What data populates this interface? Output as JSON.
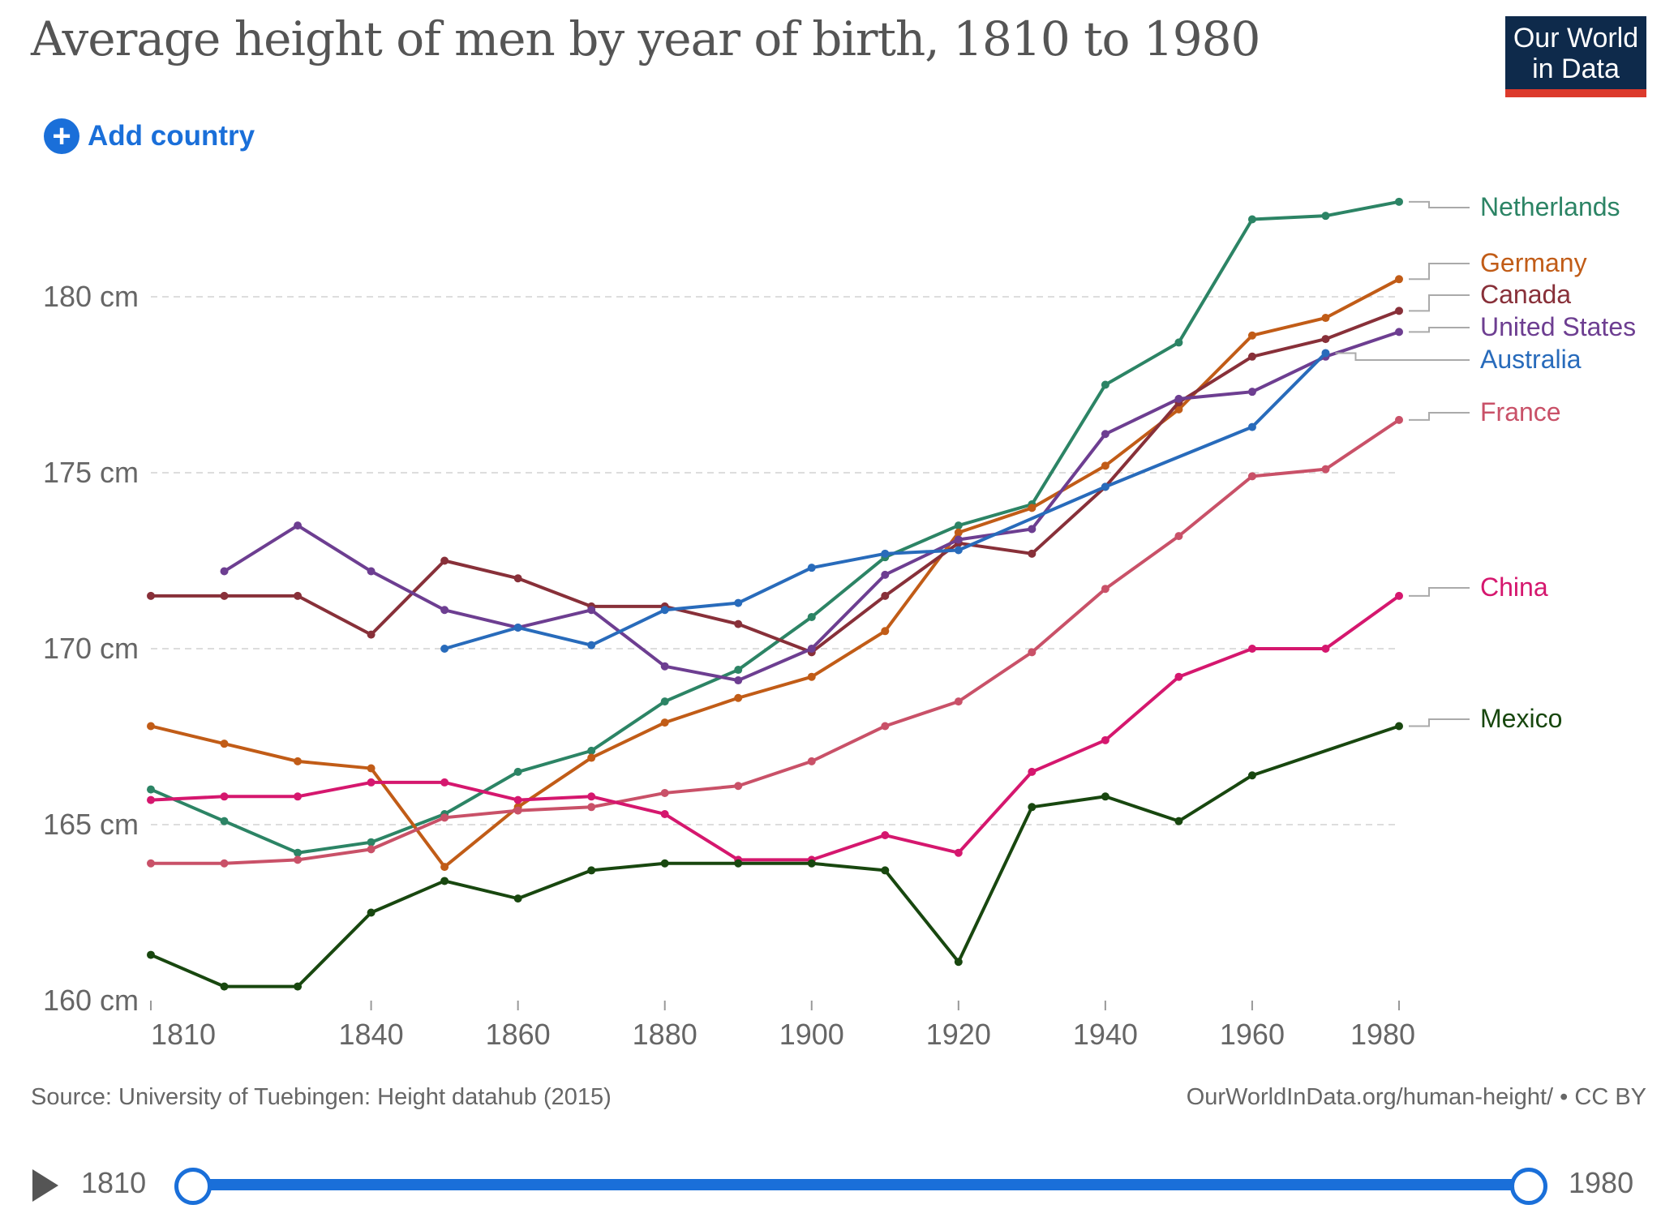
{
  "title": "Average height of men by year of birth, 1810 to 1980",
  "logo": {
    "line1": "Our World",
    "line2": "in Data"
  },
  "add_country": {
    "icon": "plus-circle-icon",
    "label": "Add country"
  },
  "footer": {
    "source": "Source: University of Tuebingen: Height datahub (2015)",
    "credit": "OurWorldInData.org/human-height/ • CC BY"
  },
  "timeline": {
    "start": "1810",
    "end": "1980",
    "play_icon": "play-icon"
  },
  "chart_data": {
    "type": "line",
    "title": "Average height of men by year of birth, 1810 to 1980",
    "xlim": [
      1810,
      1980
    ],
    "ylim": [
      160,
      182.7
    ],
    "x_ticks": [
      1810,
      1840,
      1860,
      1880,
      1900,
      1920,
      1940,
      1960,
      1980
    ],
    "y_ticks": [
      {
        "value": 160,
        "label": "160 cm"
      },
      {
        "value": 165,
        "label": "165 cm"
      },
      {
        "value": 170,
        "label": "170 cm"
      },
      {
        "value": 175,
        "label": "175 cm"
      },
      {
        "value": 180,
        "label": "180 cm"
      }
    ],
    "grid": "horizontal dashed",
    "legend": "right (inline labels)",
    "series": [
      {
        "name": "Netherlands",
        "color": "#2c8465",
        "x": [
          1810,
          1820,
          1830,
          1840,
          1850,
          1860,
          1870,
          1880,
          1890,
          1900,
          1910,
          1920,
          1930,
          1940,
          1950,
          1960,
          1970,
          1980
        ],
        "y": [
          166.0,
          165.1,
          164.2,
          164.5,
          165.3,
          166.5,
          167.1,
          168.5,
          169.4,
          170.9,
          172.6,
          173.5,
          174.1,
          177.5,
          178.7,
          182.2,
          182.3,
          182.7
        ]
      },
      {
        "name": "Germany",
        "color": "#c15c17",
        "x": [
          1810,
          1820,
          1830,
          1840,
          1850,
          1860,
          1870,
          1880,
          1890,
          1900,
          1910,
          1920,
          1930,
          1940,
          1950,
          1960,
          1970,
          1980
        ],
        "y": [
          167.8,
          167.3,
          166.8,
          166.6,
          163.8,
          165.5,
          166.9,
          167.9,
          168.6,
          169.2,
          170.5,
          173.3,
          174.0,
          175.2,
          176.8,
          178.9,
          179.4,
          180.5
        ]
      },
      {
        "name": "Canada",
        "color": "#883039",
        "x": [
          1810,
          1820,
          1830,
          1840,
          1850,
          1860,
          1870,
          1880,
          1890,
          1900,
          1910,
          1920,
          1930,
          1940,
          1950,
          1960,
          1970,
          1980
        ],
        "y": [
          171.5,
          171.5,
          171.5,
          170.4,
          172.5,
          172.0,
          171.2,
          171.2,
          170.7,
          169.9,
          171.5,
          173.0,
          172.7,
          174.6,
          177.0,
          178.3,
          178.8,
          179.6
        ]
      },
      {
        "name": "United States",
        "color": "#6d3e91",
        "x": [
          1820,
          1830,
          1840,
          1850,
          1860,
          1870,
          1880,
          1890,
          1900,
          1910,
          1920,
          1930,
          1940,
          1950,
          1960,
          1970,
          1980
        ],
        "y": [
          172.2,
          173.5,
          172.2,
          171.1,
          170.6,
          171.1,
          169.5,
          169.1,
          170.0,
          172.1,
          173.1,
          173.4,
          176.1,
          177.1,
          177.3,
          178.3,
          179.0
        ]
      },
      {
        "name": "Australia",
        "color": "#286bbb",
        "x": [
          1850,
          1860,
          1870,
          1880,
          1890,
          1900,
          1910,
          1920,
          1940,
          1960,
          1970
        ],
        "y": [
          170.0,
          170.6,
          170.1,
          171.1,
          171.3,
          172.3,
          172.7,
          172.8,
          174.6,
          176.3,
          178.4
        ]
      },
      {
        "name": "France",
        "color": "#c95168",
        "x": [
          1810,
          1820,
          1830,
          1840,
          1850,
          1860,
          1870,
          1880,
          1890,
          1900,
          1910,
          1920,
          1930,
          1940,
          1950,
          1960,
          1970,
          1980
        ],
        "y": [
          163.9,
          163.9,
          164.0,
          164.3,
          165.2,
          165.4,
          165.5,
          165.9,
          166.1,
          166.8,
          167.8,
          168.5,
          169.9,
          171.7,
          173.2,
          174.9,
          175.1,
          176.5
        ]
      },
      {
        "name": "China",
        "color": "#d5176e",
        "x": [
          1810,
          1820,
          1830,
          1840,
          1850,
          1860,
          1870,
          1880,
          1890,
          1900,
          1910,
          1920,
          1930,
          1940,
          1950,
          1960,
          1970,
          1980
        ],
        "y": [
          165.7,
          165.8,
          165.8,
          166.2,
          166.2,
          165.7,
          165.8,
          165.3,
          164.0,
          164.0,
          164.7,
          164.2,
          166.5,
          167.4,
          169.2,
          170.0,
          170.0,
          171.5
        ]
      },
      {
        "name": "Mexico",
        "color": "#18470f",
        "x": [
          1810,
          1820,
          1830,
          1840,
          1850,
          1860,
          1870,
          1880,
          1890,
          1900,
          1910,
          1920,
          1930,
          1940,
          1950,
          1960,
          1980
        ],
        "y": [
          161.3,
          160.4,
          160.4,
          162.5,
          163.4,
          162.9,
          163.7,
          163.9,
          163.9,
          163.9,
          163.7,
          161.1,
          165.5,
          165.8,
          165.1,
          166.4,
          167.8
        ]
      }
    ]
  }
}
